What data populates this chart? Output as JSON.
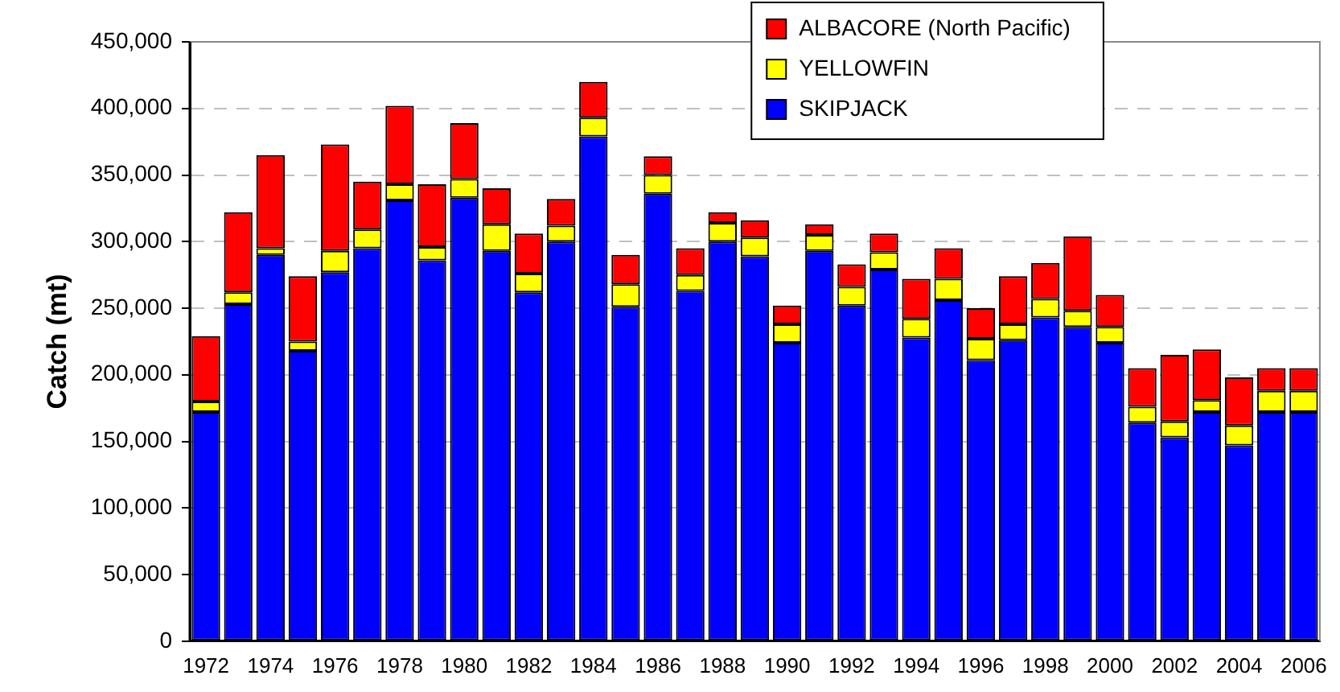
{
  "chart_data": {
    "type": "bar",
    "stacked": true,
    "ylabel": "Catch (mt)",
    "categories": [
      "1972",
      null,
      "1974",
      null,
      "1976",
      null,
      "1978",
      null,
      "1980",
      null,
      "1982",
      null,
      "1984",
      null,
      "1986",
      null,
      "1988",
      null,
      "1990",
      null,
      "1992",
      null,
      "1994",
      null,
      "1996",
      null,
      "1998",
      null,
      "2000",
      null,
      "2002",
      null,
      "2004",
      null,
      "2006"
    ],
    "series": [
      {
        "name": "SKIPJACK",
        "color": "#0000ff",
        "values": [
          172000,
          253000,
          290000,
          218000,
          277000,
          295000,
          331000,
          286000,
          333000,
          293000,
          262000,
          300000,
          379000,
          251000,
          336000,
          263000,
          300000,
          289000,
          224000,
          293000,
          252000,
          279000,
          228000,
          256000,
          211000,
          226000,
          243000,
          236000,
          224000,
          164000,
          153000,
          172000,
          147000,
          172000,
          172000
        ]
      },
      {
        "name": "YELLOWFIN",
        "color": "#ffff00",
        "values": [
          8000,
          9000,
          5000,
          7000,
          16000,
          14000,
          12000,
          10000,
          14000,
          20000,
          14000,
          12000,
          14000,
          17000,
          14000,
          12000,
          14000,
          14000,
          14000,
          12000,
          14000,
          13000,
          14000,
          16000,
          16000,
          12000,
          14000,
          12000,
          12000,
          12000,
          12000,
          9000,
          15000,
          16000,
          16000
        ]
      },
      {
        "name": "ALBACORE (North Pacific)",
        "color": "#ff0000",
        "values": [
          49000,
          60000,
          70000,
          49000,
          80000,
          36000,
          59000,
          47000,
          42000,
          27000,
          30000,
          20000,
          27000,
          22000,
          14000,
          20000,
          8000,
          13000,
          14000,
          8000,
          17000,
          14000,
          30000,
          23000,
          23000,
          36000,
          27000,
          56000,
          24000,
          29000,
          50000,
          38000,
          36000,
          17000,
          17000
        ]
      }
    ],
    "ylim": [
      0,
      450000
    ],
    "yticks": [
      {
        "value": 0,
        "label": "0"
      },
      {
        "value": 50000,
        "label": "50,000"
      },
      {
        "value": 100000,
        "label": "100,000"
      },
      {
        "value": 150000,
        "label": "150,000"
      },
      {
        "value": 200000,
        "label": "200,000"
      },
      {
        "value": 250000,
        "label": "250,000"
      },
      {
        "value": 300000,
        "label": "300,000"
      },
      {
        "value": 350000,
        "label": "350,000"
      },
      {
        "value": 400000,
        "label": "400,000"
      },
      {
        "value": 450000,
        "label": "450,000"
      }
    ],
    "grid": "y",
    "legend": "top right"
  }
}
